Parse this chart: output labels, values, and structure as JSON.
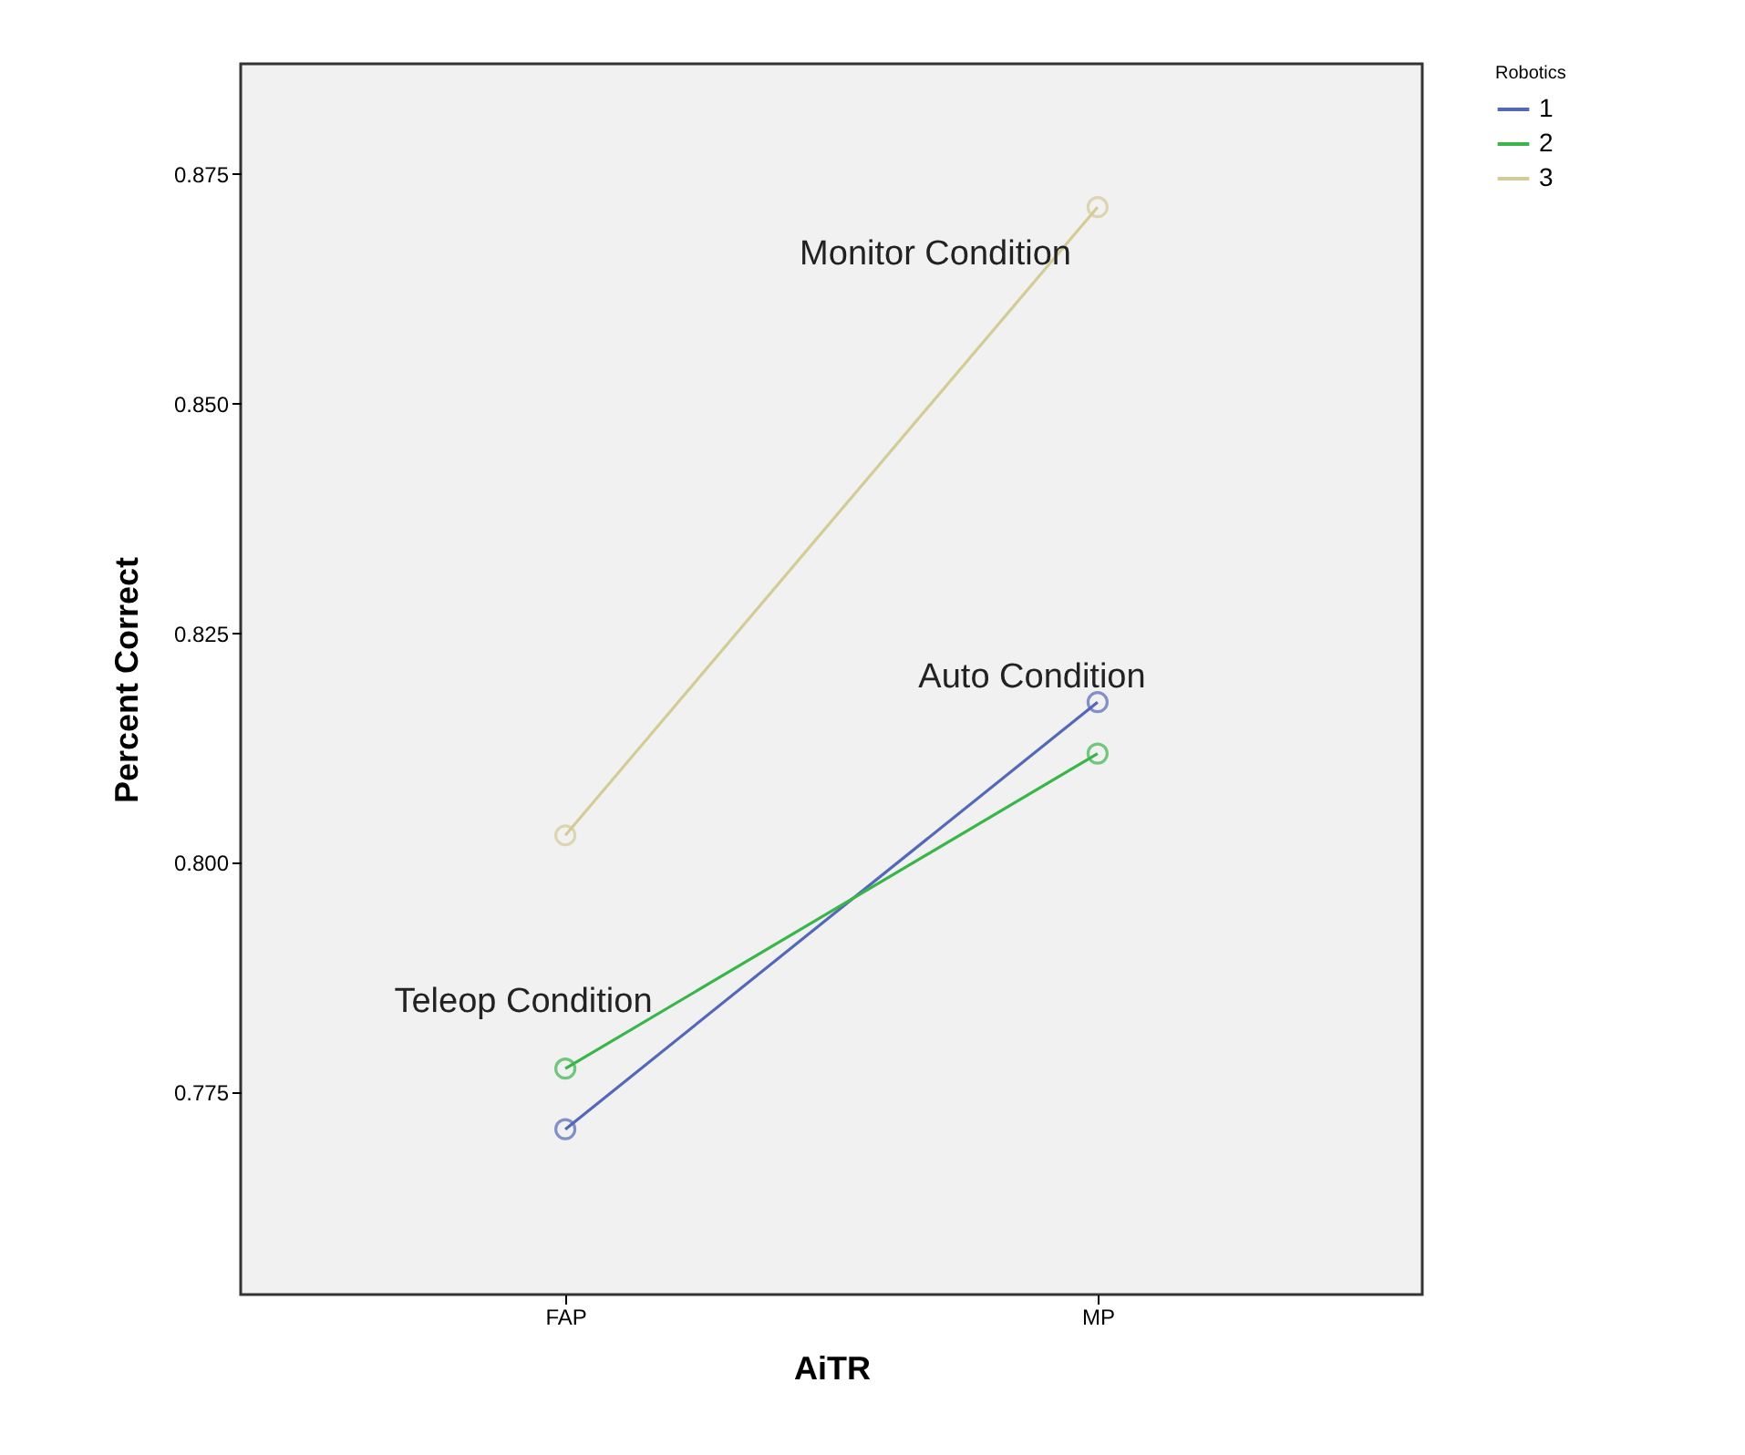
{
  "chart_data": {
    "type": "line",
    "xlabel": "AiTR",
    "ylabel": "Percent Correct",
    "legend_title": "Robotics",
    "categories": [
      "FAP",
      "MP"
    ],
    "series": [
      {
        "name": "1",
        "color": "#5468b8",
        "values": [
          0.771,
          0.8175
        ]
      },
      {
        "name": "2",
        "color": "#3ab54a",
        "values": [
          0.7776,
          0.8119
        ]
      },
      {
        "name": "3",
        "color": "#d4cc96",
        "values": [
          0.803,
          0.8714
        ]
      }
    ],
    "ylim": [
      0.753,
      0.887
    ],
    "yticks": [
      0.775,
      {
        "value": 0.8,
        "label": "0.800"
      },
      0.825,
      {
        "value": 0.85,
        "label": "0.850"
      },
      0.875
    ],
    "grid": false,
    "legend": "top right",
    "marker": "circle",
    "line_style": "solid",
    "annotations": [
      "Monitor Condition",
      "Auto Condition",
      "Teleop Condition"
    ]
  }
}
